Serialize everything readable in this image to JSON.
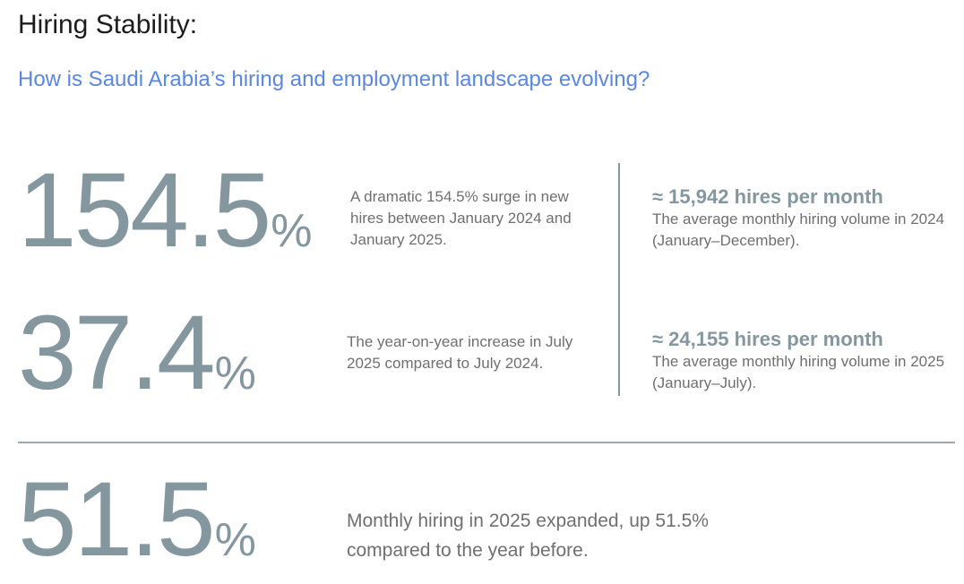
{
  "header": {
    "title": "Hiring Stability:",
    "subtitle": "How is Saudi Arabia’s hiring and employment landscape evolving?"
  },
  "stats": [
    {
      "value": "154.5",
      "unit": "%",
      "description": "A dramatic 154.5% surge in new hires between January 2024 and January 2025."
    },
    {
      "value": "37.4",
      "unit": "%",
      "description": "The year-on-year increase in July 2025 compared to July 2024."
    },
    {
      "value": "51.5",
      "unit": "%",
      "description": "Monthly hiring in 2025 expanded, up 51.5% compared to the year before."
    }
  ],
  "metrics": [
    {
      "headline": "≈ 15,942 hires per month",
      "description": "The average monthly hiring volume in 2024 (January–December)."
    },
    {
      "headline": "≈ 24,155 hires per month",
      "description": "The average monthly hiring volume in 2025 (January–July)."
    }
  ],
  "colors": {
    "stat_gray": "#84979f",
    "subtitle_blue": "#5a87e0",
    "body_text": "#6f6f6f"
  }
}
